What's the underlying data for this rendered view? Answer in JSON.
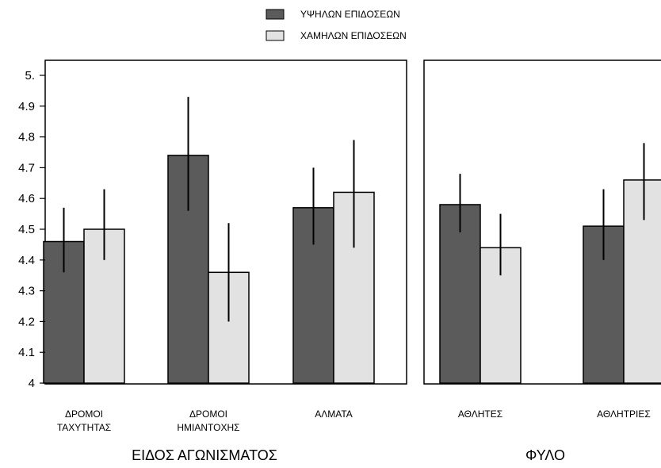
{
  "chart_data": {
    "type": "bar",
    "legend": {
      "placement": "top-center",
      "entries": [
        {
          "name": "ΥΨΗΛΩΝ ΕΠΙΔΟΣΕΩΝ",
          "color": "#5b5b5b"
        },
        {
          "name": "ΧΑΜΗΛΩΝ ΕΠΙΔΟΣΕΩΝ",
          "color": "#e2e2e2"
        }
      ]
    },
    "y_axis": {
      "range": [
        4,
        5
      ],
      "ticks": [
        "4",
        "4.1",
        "4.2",
        "4.3",
        "4.4",
        "4.5",
        "4.6",
        "4.7",
        "4.8",
        "4.9",
        "5."
      ],
      "tick_values": [
        4,
        4.1,
        4.2,
        4.3,
        4.4,
        4.5,
        4.6,
        4.7,
        4.8,
        4.9,
        5
      ],
      "grid": false
    },
    "panels": [
      {
        "xlabel": "ΕΙΔΟΣ ΑΓΩΝΙΣΜΑΤΟΣ",
        "categories": [
          [
            "ΔΡΟΜΟΙ",
            "ΤΑΧΥΤΗΤΑΣ"
          ],
          [
            "ΔΡΟΜΟΙ",
            "ΗΜΙΑΝΤΟΧΗΣ"
          ],
          [
            "ΑΛΜΑΤΑ"
          ]
        ],
        "series": [
          {
            "name": "ΥΨΗΛΩΝ ΕΠΙΔΟΣΕΩΝ",
            "values": [
              4.46,
              4.74,
              4.57
            ],
            "err_low": [
              4.36,
              4.56,
              4.45
            ],
            "err_high": [
              4.57,
              4.93,
              4.7
            ]
          },
          {
            "name": "ΧΑΜΗΛΩΝ ΕΠΙΔΟΣΕΩΝ",
            "values": [
              4.5,
              4.36,
              4.62
            ],
            "err_low": [
              4.4,
              4.2,
              4.44
            ],
            "err_high": [
              4.63,
              4.52,
              4.79
            ]
          }
        ]
      },
      {
        "xlabel": "ΦΥΛΟ",
        "categories": [
          [
            "ΑΘΛΗΤΕΣ"
          ],
          [
            "ΑΘΛΗΤΡΙΕΣ"
          ]
        ],
        "series": [
          {
            "name": "ΥΨΗΛΩΝ ΕΠΙΔΟΣΕΩΝ",
            "values": [
              4.58,
              4.51
            ],
            "err_low": [
              4.49,
              4.4
            ],
            "err_high": [
              4.68,
              4.63
            ]
          },
          {
            "name": "ΧΑΜΗΛΩΝ ΕΠΙΔΟΣΕΩΝ",
            "values": [
              4.44,
              4.66
            ],
            "err_low": [
              4.35,
              4.53
            ],
            "err_high": [
              4.55,
              4.78
            ]
          }
        ]
      }
    ]
  }
}
